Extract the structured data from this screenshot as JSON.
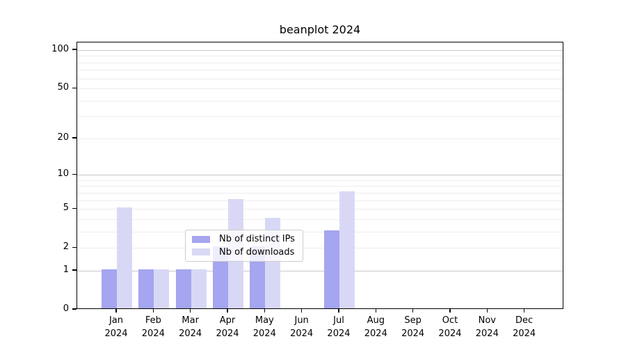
{
  "title": "beanplot 2024",
  "chart_data": {
    "type": "bar",
    "title": "beanplot 2024",
    "y_scale": "log10(1+y)",
    "grid": "horizontal only",
    "legend_position": "lower center inside plot",
    "categories": [
      "Jan 2024",
      "Feb 2024",
      "Mar 2024",
      "Apr 2024",
      "May 2024",
      "Jun 2024",
      "Jul 2024",
      "Aug 2024",
      "Sep 2024",
      "Oct 2024",
      "Nov 2024",
      "Dec 2024"
    ],
    "series": [
      {
        "name": "Nb of distinct IPs",
        "color": "#a5a5f0",
        "values": [
          1,
          1,
          1,
          2,
          2,
          0,
          3,
          0,
          0,
          0,
          0,
          0
        ]
      },
      {
        "name": "Nb of downloads",
        "color": "#d8d8f6",
        "values": [
          5,
          1,
          1,
          6,
          4,
          0,
          7,
          0,
          0,
          0,
          0,
          0
        ]
      }
    ],
    "y_ticks": [
      0,
      1,
      2,
      5,
      10,
      20,
      50,
      100
    ],
    "y_max": 114.6,
    "major_gridlines": [
      1,
      10,
      100
    ],
    "minor_gridlines": [
      2,
      3,
      4,
      5,
      6,
      7,
      8,
      9,
      20,
      30,
      40,
      50,
      60,
      70,
      80,
      90
    ],
    "colors": {
      "spine": "#000000",
      "major_grid": "#c8c8c8",
      "minor_grid": "#ededed",
      "legend_border": "#cccccc"
    }
  }
}
